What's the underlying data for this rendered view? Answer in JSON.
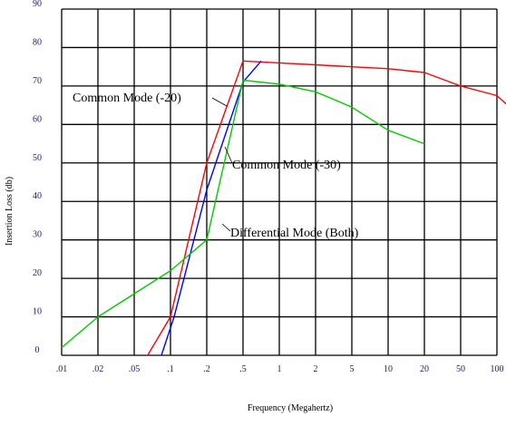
{
  "chart_data": {
    "type": "line",
    "xlabel": "Frequency (Megahertz)",
    "ylabel": "Insertion Loss (db)",
    "x_ticks": [
      ".01",
      ".02",
      ".05",
      ".1",
      ".2",
      ".5",
      "1",
      "2",
      "5",
      "10",
      "20",
      "50",
      "100"
    ],
    "y_ticks": [
      "0",
      "10",
      "20",
      "30",
      "40",
      "50",
      "60",
      "70",
      "80",
      "90"
    ],
    "ylim": [
      0,
      90
    ],
    "x_scale": "categorical (log-spaced frequency ticks)",
    "grid": true,
    "series": [
      {
        "color": "#ff0000",
        "x_index": [
          2.37,
          3.0,
          4.0,
          5.0,
          6.0,
          7.0,
          8.0,
          9.0,
          10.0,
          11.0,
          12.0,
          13.0
        ],
        "values": [
          0,
          10,
          50,
          76.5,
          76,
          75.5,
          75,
          74.5,
          73.5,
          70,
          67.5,
          59
        ]
      },
      {
        "color": "#0000ff",
        "x_index": [
          2.75,
          3.1,
          4.0,
          5.0,
          5.5
        ],
        "values": [
          0,
          10,
          43,
          71,
          76.5
        ]
      },
      {
        "color": "#00cc00",
        "x_index": [
          0.0,
          1.0,
          3.0,
          4.0,
          5.0,
          6.0,
          7.0,
          8.0,
          9.0,
          10.0
        ],
        "values": [
          2,
          10,
          22,
          30,
          71.5,
          70.5,
          68.5,
          64.5,
          58.5,
          55
        ]
      }
    ],
    "annotations": [
      {
        "text": "Common Mode (-20)",
        "target_series": 0
      },
      {
        "text": "Common Mode (-30)",
        "target_series": 1
      },
      {
        "text": "Differential Mode (Both)",
        "target_series": 2
      }
    ]
  }
}
